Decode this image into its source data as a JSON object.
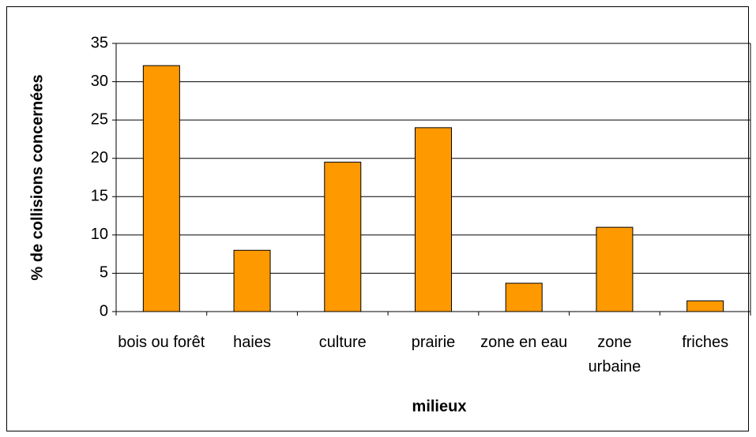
{
  "chart_data": {
    "type": "bar",
    "y_label": "% de collisions concernées",
    "x_label": "milieux",
    "categories": [
      "bois ou forêt",
      "haies",
      "culture",
      "prairie",
      "zone en eau",
      "zone urbaine",
      "friches"
    ],
    "values": [
      32.1,
      8,
      19.5,
      24,
      3.7,
      11,
      1.4
    ],
    "color": "#ff9900",
    "ylim": [
      0,
      35
    ],
    "yticks": [
      0,
      5,
      10,
      15,
      20,
      25,
      30,
      35
    ],
    "grid": true
  }
}
